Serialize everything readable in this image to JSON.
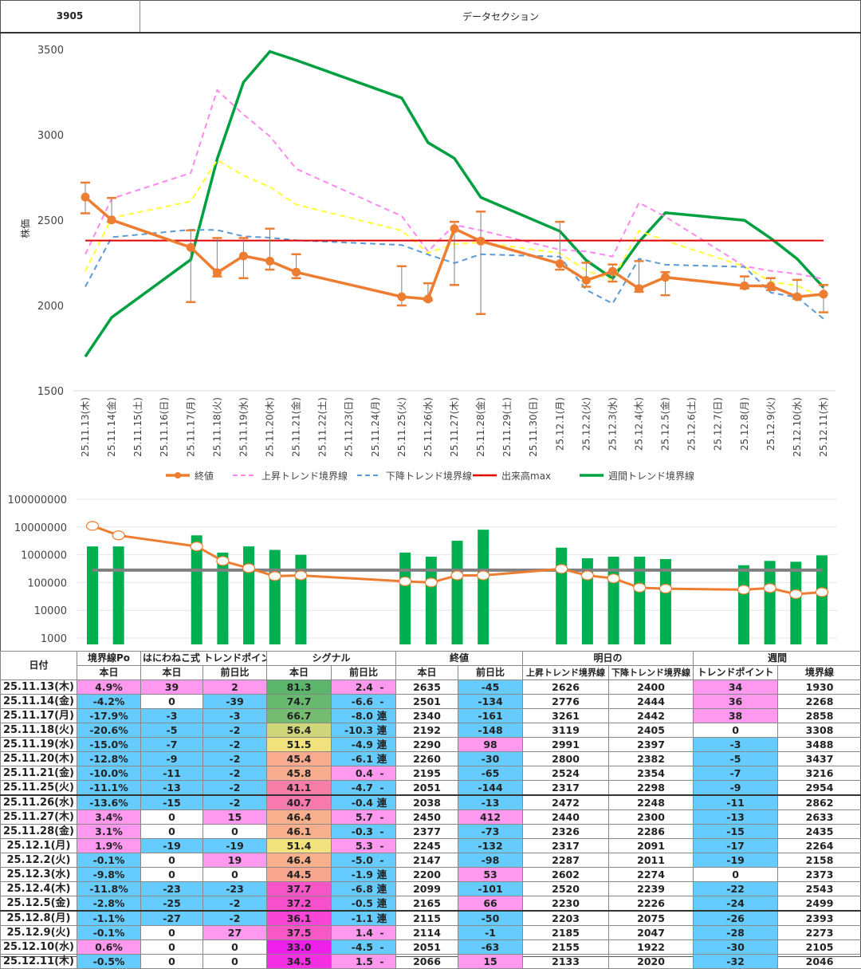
{
  "header": {
    "code": "3905",
    "title": "データセクション"
  },
  "colors": {
    "close": "#ED7D31",
    "upper": "#FF88EE",
    "lower": "#5B9BD5",
    "mid_yellow": "#FFFF33",
    "volume_max": "#E00000",
    "weekly": "#00A040",
    "vol_bar": "#00B050",
    "vol_avg": "#808080",
    "pink": "#FF99F0",
    "blue": "#66CCFF"
  },
  "chart_data": [
    {
      "type": "line",
      "title": "",
      "ylabel": "株価",
      "ylim": [
        1500,
        3500
      ],
      "yticks": [
        1500,
        2000,
        2500,
        3000,
        3500
      ],
      "grid": false,
      "legend_position": "bottom",
      "x": [
        "25.11.13(木)",
        "25.11.14(金)",
        "25.11.15(土)",
        "25.11.16(日)",
        "25.11.17(月)",
        "25.11.18(火)",
        "25.11.19(水)",
        "25.11.20(木)",
        "25.11.21(金)",
        "25.11.22(土)",
        "25.11.23(日)",
        "25.11.24(月)",
        "25.11.25(火)",
        "25.11.26(水)",
        "25.11.27(木)",
        "25.11.28(金)",
        "25.11.29(土)",
        "25.11.30(日)",
        "25.12.1(月)",
        "25.12.2(火)",
        "25.12.3(水)",
        "25.12.4(木)",
        "25.12.5(金)",
        "25.12.6(土)",
        "25.12.7(日)",
        "25.12.8(月)",
        "25.12.9(火)",
        "25.12.10(水)",
        "25.12.11(木)"
      ],
      "series": [
        {
          "name": "終値",
          "style": "solid-marker",
          "error_bars": true,
          "values": [
            2635,
            2501,
            null,
            null,
            2340,
            2192,
            2290,
            2260,
            2195,
            null,
            null,
            null,
            2051,
            2038,
            2450,
            2377,
            null,
            null,
            2245,
            2147,
            2200,
            2099,
            2165,
            null,
            null,
            2115,
            2114,
            2051,
            2066
          ],
          "error_high": [
            2720,
            2630,
            null,
            null,
            2440,
            2395,
            2395,
            2450,
            2300,
            null,
            null,
            null,
            2230,
            2130,
            2490,
            2550,
            null,
            null,
            2490,
            2250,
            2240,
            2260,
            2195,
            null,
            null,
            2170,
            2160,
            2150,
            2120
          ],
          "error_low": [
            2540,
            2490,
            null,
            null,
            2020,
            2170,
            2160,
            2210,
            2160,
            null,
            null,
            null,
            2000,
            2030,
            2120,
            1950,
            null,
            null,
            2210,
            2110,
            2140,
            2080,
            2060,
            null,
            null,
            2100,
            2090,
            2040,
            1960
          ]
        },
        {
          "name": "上昇トレンド境界線",
          "style": "dashed",
          "values": [
            2300,
            2626,
            null,
            null,
            2776,
            3261,
            3119,
            2991,
            2800,
            null,
            null,
            null,
            2524,
            2317,
            2472,
            2440,
            null,
            null,
            2326,
            2317,
            2287,
            2602,
            2520,
            null,
            null,
            2230,
            2203,
            2185,
            2155
          ]
        },
        {
          "name": "下降トレンド境界線",
          "style": "dashed",
          "values": [
            2110,
            2400,
            null,
            null,
            2444,
            2442,
            2405,
            2397,
            2382,
            null,
            null,
            null,
            2354,
            2298,
            2248,
            2300,
            null,
            null,
            2286,
            2091,
            2011,
            2274,
            2239,
            null,
            null,
            2226,
            2075,
            2047,
            1922
          ]
        },
        {
          "name": "(中央線)",
          "style": "dashed-yellow",
          "legend": false,
          "values": [
            2200,
            2513,
            null,
            null,
            2610,
            2852,
            2762,
            2694,
            2591,
            null,
            null,
            null,
            2439,
            2308,
            2360,
            2370,
            null,
            null,
            2306,
            2204,
            2149,
            2438,
            2380,
            null,
            null,
            2228,
            2139,
            2116,
            2045
          ]
        },
        {
          "name": "出来高max",
          "style": "solid",
          "values_constant": 2380
        },
        {
          "name": "週間トレンド境界線",
          "style": "solid-thick",
          "values": [
            1700,
            1930,
            null,
            null,
            2268,
            2858,
            3308,
            3488,
            3437,
            null,
            null,
            null,
            3216,
            2954,
            2862,
            2633,
            null,
            null,
            2435,
            2264,
            2158,
            2373,
            2543,
            null,
            null,
            2499,
            2393,
            2273,
            2105
          ]
        }
      ]
    },
    {
      "type": "bar",
      "scale": "log",
      "ylim": [
        1000,
        100000000
      ],
      "yticks": [
        "1000",
        "10000",
        "100000",
        "1000000",
        "10000000",
        "100000000"
      ],
      "x": [
        "25.11.13(木)",
        "25.11.14(金)",
        "25.11.15(土)",
        "25.11.16(日)",
        "25.11.17(月)",
        "25.11.18(火)",
        "25.11.19(水)",
        "25.11.20(木)",
        "25.11.21(金)",
        "25.11.22(土)",
        "25.11.23(日)",
        "25.11.24(月)",
        "25.11.25(火)",
        "25.11.26(水)",
        "25.11.27(木)",
        "25.11.28(金)",
        "25.11.29(土)",
        "25.11.30(日)",
        "25.12.1(月)",
        "25.12.2(火)",
        "25.12.3(水)",
        "25.12.4(木)",
        "25.12.5(金)",
        "25.12.6(土)",
        "25.12.7(日)",
        "25.12.8(月)",
        "25.12.9(火)",
        "25.12.10(水)",
        "25.12.11(木)"
      ],
      "series": [
        {
          "name": "出来高",
          "type": "bar",
          "values": [
            2000000,
            2000000,
            null,
            null,
            5000000,
            1200000,
            2000000,
            1500000,
            1000000,
            null,
            null,
            null,
            1200000,
            850000,
            3200000,
            8000000,
            null,
            null,
            1800000,
            750000,
            850000,
            850000,
            700000,
            null,
            null,
            420000,
            600000,
            560000,
            950000
          ]
        },
        {
          "name": "平均",
          "type": "line-marker",
          "values": [
            11000000,
            5000000,
            null,
            null,
            2000000,
            600000,
            330000,
            170000,
            180000,
            null,
            null,
            null,
            110000,
            100000,
            180000,
            180000,
            null,
            null,
            310000,
            180000,
            140000,
            65000,
            60000,
            null,
            null,
            55000,
            63000,
            38000,
            45000
          ]
        },
        {
          "name": "基準",
          "type": "line",
          "values_constant": 280000
        }
      ]
    }
  ],
  "table": {
    "group_headers": [
      "日付",
      "境界線Po",
      "はにわねこ式 トレンドポイント",
      "シグナル",
      "終値",
      "明日の",
      "週間"
    ],
    "sub_headers": [
      "本日",
      "本日",
      "前日比",
      "本日",
      "前日比",
      "本日",
      "前日比",
      "上昇トレンド境界線",
      "下降トレンド境界線",
      "トレンドポイント",
      "境界線"
    ],
    "rows": [
      {
        "date": "25.11.13(木)",
        "po": "4.9%",
        "tp": "39",
        "tp_d": "2",
        "sig": "81.3",
        "sig_d": "2.4",
        "sig_m": "-",
        "close": "2635",
        "close_d": "-45",
        "up": "2626",
        "dn": "2400",
        "wtp": "34",
        "wline": "1930"
      },
      {
        "date": "25.11.14(金)",
        "po": "-4.2%",
        "tp": "0",
        "tp_d": "-39",
        "sig": "74.7",
        "sig_d": "-6.6",
        "sig_m": "-",
        "close": "2501",
        "close_d": "-134",
        "up": "2776",
        "dn": "2444",
        "wtp": "36",
        "wline": "2268"
      },
      {
        "date": "25.11.17(月)",
        "po": "-17.9%",
        "tp": "-3",
        "tp_d": "-3",
        "sig": "66.7",
        "sig_d": "-8.0",
        "sig_m": "連",
        "close": "2340",
        "close_d": "-161",
        "up": "3261",
        "dn": "2442",
        "wtp": "38",
        "wline": "2858"
      },
      {
        "date": "25.11.18(火)",
        "po": "-20.6%",
        "tp": "-5",
        "tp_d": "-2",
        "sig": "56.4",
        "sig_d": "-10.3",
        "sig_m": "連",
        "close": "2192",
        "close_d": "-148",
        "up": "3119",
        "dn": "2405",
        "wtp": "0",
        "wline": "3308"
      },
      {
        "date": "25.11.19(水)",
        "po": "-15.0%",
        "tp": "-7",
        "tp_d": "-2",
        "sig": "51.5",
        "sig_d": "-4.9",
        "sig_m": "連",
        "close": "2290",
        "close_d": "98",
        "up": "2991",
        "dn": "2397",
        "wtp": "-3",
        "wline": "3488"
      },
      {
        "date": "25.11.20(木)",
        "po": "-12.8%",
        "tp": "-9",
        "tp_d": "-2",
        "sig": "45.4",
        "sig_d": "-6.1",
        "sig_m": "連",
        "close": "2260",
        "close_d": "-30",
        "up": "2800",
        "dn": "2382",
        "wtp": "-5",
        "wline": "3437"
      },
      {
        "date": "25.11.21(金)",
        "po": "-10.0%",
        "tp": "-11",
        "tp_d": "-2",
        "sig": "45.8",
        "sig_d": "0.4",
        "sig_m": "-",
        "close": "2195",
        "close_d": "-65",
        "up": "2524",
        "dn": "2354",
        "wtp": "-7",
        "wline": "3216"
      },
      {
        "date": "25.11.25(火)",
        "po": "-11.1%",
        "tp": "-13",
        "tp_d": "-2",
        "sig": "41.1",
        "sig_d": "-4.7",
        "sig_m": "-",
        "close": "2051",
        "close_d": "-144",
        "up": "2317",
        "dn": "2298",
        "wtp": "-9",
        "wline": "2954"
      },
      {
        "date": "25.11.26(水)",
        "po": "-13.6%",
        "tp": "-15",
        "tp_d": "-2",
        "sig": "40.7",
        "sig_d": "-0.4",
        "sig_m": "連",
        "close": "2038",
        "close_d": "-13",
        "up": "2472",
        "dn": "2248",
        "wtp": "-11",
        "wline": "2862"
      },
      {
        "date": "25.11.27(木)",
        "po": "3.4%",
        "tp": "0",
        "tp_d": "15",
        "sig": "46.4",
        "sig_d": "5.7",
        "sig_m": "-",
        "close": "2450",
        "close_d": "412",
        "up": "2440",
        "dn": "2300",
        "wtp": "-13",
        "wline": "2633"
      },
      {
        "date": "25.11.28(金)",
        "po": "3.1%",
        "tp": "0",
        "tp_d": "0",
        "sig": "46.1",
        "sig_d": "-0.3",
        "sig_m": "-",
        "close": "2377",
        "close_d": "-73",
        "up": "2326",
        "dn": "2286",
        "wtp": "-15",
        "wline": "2435"
      },
      {
        "date": "25.12.1(月)",
        "po": "1.9%",
        "tp": "-19",
        "tp_d": "-19",
        "sig": "51.4",
        "sig_d": "5.3",
        "sig_m": "-",
        "close": "2245",
        "close_d": "-132",
        "up": "2317",
        "dn": "2091",
        "wtp": "-17",
        "wline": "2264"
      },
      {
        "date": "25.12.2(火)",
        "po": "-0.1%",
        "tp": "0",
        "tp_d": "19",
        "sig": "46.4",
        "sig_d": "-5.0",
        "sig_m": "-",
        "close": "2147",
        "close_d": "-98",
        "up": "2287",
        "dn": "2011",
        "wtp": "-19",
        "wline": "2158"
      },
      {
        "date": "25.12.3(水)",
        "po": "-9.8%",
        "tp": "0",
        "tp_d": "0",
        "sig": "44.5",
        "sig_d": "-1.9",
        "sig_m": "連",
        "close": "2200",
        "close_d": "53",
        "up": "2602",
        "dn": "2274",
        "wtp": "0",
        "wline": "2373"
      },
      {
        "date": "25.12.4(木)",
        "po": "-11.8%",
        "tp": "-23",
        "tp_d": "-23",
        "sig": "37.7",
        "sig_d": "-6.8",
        "sig_m": "連",
        "close": "2099",
        "close_d": "-101",
        "up": "2520",
        "dn": "2239",
        "wtp": "-22",
        "wline": "2543"
      },
      {
        "date": "25.12.5(金)",
        "po": "-2.8%",
        "tp": "-25",
        "tp_d": "-2",
        "sig": "37.2",
        "sig_d": "-0.5",
        "sig_m": "連",
        "close": "2165",
        "close_d": "66",
        "up": "2230",
        "dn": "2226",
        "wtp": "-24",
        "wline": "2499"
      },
      {
        "date": "25.12.8(月)",
        "po": "-1.1%",
        "tp": "-27",
        "tp_d": "-2",
        "sig": "36.1",
        "sig_d": "-1.1",
        "sig_m": "連",
        "close": "2115",
        "close_d": "-50",
        "up": "2203",
        "dn": "2075",
        "wtp": "-26",
        "wline": "2393"
      },
      {
        "date": "25.12.9(火)",
        "po": "-0.1%",
        "tp": "0",
        "tp_d": "27",
        "sig": "37.5",
        "sig_d": "1.4",
        "sig_m": "-",
        "close": "2114",
        "close_d": "-1",
        "up": "2185",
        "dn": "2047",
        "wtp": "-28",
        "wline": "2273"
      },
      {
        "date": "25.12.10(水)",
        "po": "0.6%",
        "tp": "0",
        "tp_d": "0",
        "sig": "33.0",
        "sig_d": "-4.5",
        "sig_m": "-",
        "close": "2051",
        "close_d": "-63",
        "up": "2155",
        "dn": "1922",
        "wtp": "-30",
        "wline": "2105"
      },
      {
        "date": "25.12.11(木)",
        "po": "-0.5%",
        "tp": "0",
        "tp_d": "0",
        "sig": "34.5",
        "sig_d": "1.5",
        "sig_m": "-",
        "close": "2066",
        "close_d": "15",
        "up": "2133",
        "dn": "2020",
        "wtp": "-32",
        "wline": "2046"
      }
    ],
    "week_separators_before": [
      8,
      16
    ],
    "signal_colors": {
      "81.3": "#5BB56A",
      "74.7": "#66B96E",
      "66.7": "#74BC70",
      "56.4": "#CFD77A",
      "51.5": "#F2E27E",
      "51.4": "#F2E27E",
      "46.4": "#F8B08C",
      "46.1": "#F8AF8D",
      "45.8": "#F8AE8E",
      "45.4": "#F8AB8E",
      "44.5": "#F8A68E",
      "41.1": "#F87EA8",
      "40.7": "#F879AE",
      "37.7": "#F855C8",
      "37.5": "#F858C6",
      "37.2": "#F850CC",
      "36.1": "#F845D6",
      "34.5": "#F530E4",
      "33.0": "#F020EC"
    }
  }
}
